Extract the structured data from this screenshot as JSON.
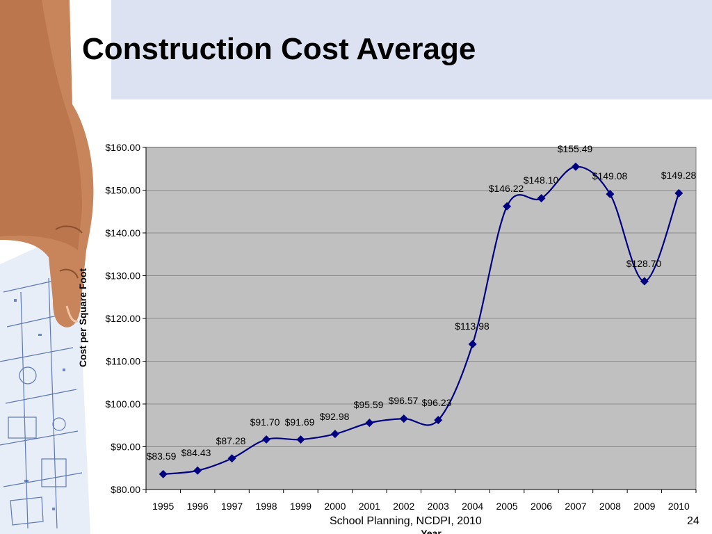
{
  "slide": {
    "title": "Construction Cost Average",
    "footer": "School Planning, NCDPI, 2010",
    "page_number": "24"
  },
  "colors": {
    "header_bg": "#dde2f3",
    "plot_bg": "#c0c0c0",
    "line": "#000080"
  },
  "chart_data": {
    "type": "line",
    "title": "",
    "xlabel": "Year",
    "ylabel": "Cost per Square Foot",
    "categories": [
      "1995",
      "1996",
      "1997",
      "1998",
      "1999",
      "2000",
      "2001",
      "2002",
      "2003",
      "2004",
      "2005",
      "2006",
      "2007",
      "2008",
      "2009",
      "2010"
    ],
    "series": [
      {
        "values": [
          83.59,
          84.43,
          87.28,
          91.7,
          91.69,
          92.98,
          95.59,
          96.57,
          96.23,
          113.98,
          146.22,
          148.1,
          155.49,
          149.08,
          128.7,
          149.28
        ]
      }
    ],
    "data_labels": [
      "$83.59",
      "$84.43",
      "$87.28",
      "$91.70",
      "$91.69",
      "$92.98",
      "$95.59",
      "$96.57",
      "$96.23",
      "$113.98",
      "$146.22",
      "$148.10",
      "$155.49",
      "$149.08",
      "$128.70",
      "$149.28"
    ],
    "y_ticks": [
      "$80.00",
      "$90.00",
      "$100.00",
      "$110.00",
      "$120.00",
      "$130.00",
      "$140.00",
      "$150.00",
      "$160.00"
    ],
    "ylim": [
      80,
      160
    ],
    "grid": true,
    "legend": "none",
    "marker": "diamond"
  }
}
